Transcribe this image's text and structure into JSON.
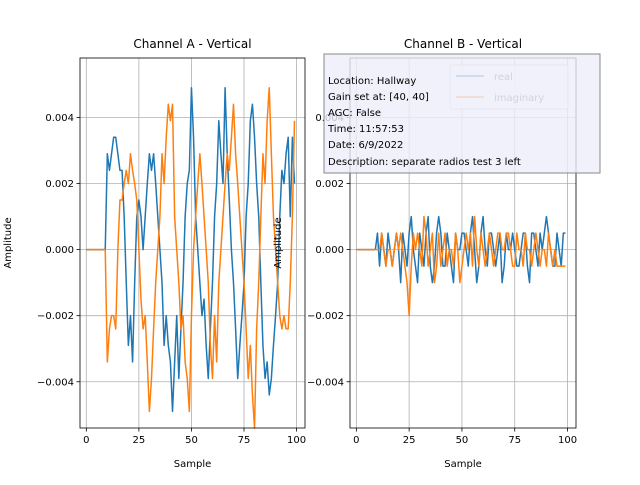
{
  "colors": {
    "real": "#1f77b4",
    "imaginary": "#ff7f0e",
    "grid": "#b0b0b0",
    "info_box_fill": "#eeeefa",
    "info_box_edge": "#888888"
  },
  "info_box": {
    "lines": [
      "Location: Hallway",
      "Gain set at: [40, 40]",
      "AGC: False",
      "Time: 11:57:53",
      "Date: 6/9/2022",
      "Description: separate radios test 3 left"
    ]
  },
  "chart_data": [
    {
      "type": "line",
      "title": "Channel A - Vertical",
      "xlabel": "Sample",
      "ylabel": "Amplitude",
      "xlim": [
        -3,
        104
      ],
      "ylim": [
        -0.0054,
        0.0058
      ],
      "xticks": [
        0,
        25,
        50,
        75,
        100
      ],
      "xtick_labels": [
        "0",
        "25",
        "50",
        "75",
        "100"
      ],
      "yticks": [
        -0.004,
        -0.002,
        0.0,
        0.002,
        0.004
      ],
      "ytick_labels": [
        "−0.004",
        "−0.002",
        "0.000",
        "0.002",
        "0.004"
      ],
      "grid": true,
      "legend": "none",
      "series": [
        {
          "name": "real",
          "x": [
            0,
            1,
            2,
            3,
            4,
            5,
            6,
            7,
            8,
            9,
            10,
            11,
            12,
            13,
            14,
            15,
            16,
            17,
            18,
            19,
            20,
            21,
            22,
            23,
            24,
            25,
            26,
            27,
            28,
            29,
            30,
            31,
            32,
            33,
            34,
            35,
            36,
            37,
            38,
            39,
            40,
            41,
            42,
            43,
            44,
            45,
            46,
            47,
            48,
            49,
            50,
            51,
            52,
            53,
            54,
            55,
            56,
            57,
            58,
            59,
            60,
            61,
            62,
            63,
            64,
            65,
            66,
            67,
            68,
            69,
            70,
            71,
            72,
            73,
            74,
            75,
            76,
            77,
            78,
            79,
            80,
            81,
            82,
            83,
            84,
            85,
            86,
            87,
            88,
            89,
            90,
            91,
            92,
            93,
            94,
            95,
            96,
            97,
            98,
            99
          ],
          "values": [
            0,
            0,
            0,
            0,
            0,
            0,
            0,
            0,
            0,
            0,
            0.0029,
            0.0024,
            0.0029,
            0.0034,
            0.0034,
            0.0029,
            0.0024,
            0.0024,
            0.001,
            -0.001,
            -0.0029,
            -0.002,
            -0.0034,
            -0.001,
            0.001,
            0.0015,
            0.001,
            0.0,
            0.001,
            0.002,
            0.0029,
            0.0024,
            0.0029,
            0.002,
            0.001,
            0.0,
            -0.001,
            -0.0029,
            -0.002,
            -0.0029,
            -0.0034,
            -0.0049,
            -0.0034,
            -0.002,
            -0.0039,
            -0.0024,
            -0.001,
            0.001,
            0.002,
            0.0024,
            0.0049,
            0.0034,
            0.001,
            0.0,
            -0.001,
            -0.002,
            -0.0015,
            -0.0029,
            -0.0039,
            -0.0024,
            -0.001,
            0.001,
            0.002,
            0.0039,
            0.0029,
            0.002,
            0.0049,
            0.0029,
            0.0015,
            0.0,
            -0.001,
            -0.0024,
            -0.0039,
            -0.0029,
            -0.002,
            -0.001,
            0.001,
            0.002,
            0.0039,
            0.0044,
            0.0034,
            0.002,
            0.001,
            -0.001,
            -0.0029,
            -0.0039,
            -0.0034,
            -0.0044,
            -0.0039,
            -0.0029,
            -0.002,
            -0.001,
            0.001,
            0.0024,
            0.002,
            0.0029,
            0.0034,
            0.001,
            0.0034,
            0.002
          ]
        },
        {
          "name": "imaginary",
          "x": [
            0,
            1,
            2,
            3,
            4,
            5,
            6,
            7,
            8,
            9,
            10,
            11,
            12,
            13,
            14,
            15,
            16,
            17,
            18,
            19,
            20,
            21,
            22,
            23,
            24,
            25,
            26,
            27,
            28,
            29,
            30,
            31,
            32,
            33,
            34,
            35,
            36,
            37,
            38,
            39,
            40,
            41,
            42,
            43,
            44,
            45,
            46,
            47,
            48,
            49,
            50,
            51,
            52,
            53,
            54,
            55,
            56,
            57,
            58,
            59,
            60,
            61,
            62,
            63,
            64,
            65,
            66,
            67,
            68,
            69,
            70,
            71,
            72,
            73,
            74,
            75,
            76,
            77,
            78,
            79,
            80,
            81,
            82,
            83,
            84,
            85,
            86,
            87,
            88,
            89,
            90,
            91,
            92,
            93,
            94,
            95,
            96,
            97,
            98,
            99
          ],
          "values": [
            0,
            0,
            0,
            0,
            0,
            0,
            0,
            0,
            0,
            0,
            -0.0034,
            -0.0024,
            -0.002,
            -0.002,
            -0.0024,
            0.0,
            0.0015,
            0.0015,
            0.002,
            0.0024,
            0.002,
            0.0029,
            0.0024,
            0.002,
            0.0015,
            0.0,
            -0.0015,
            -0.0024,
            -0.002,
            -0.0034,
            -0.0049,
            -0.0039,
            -0.0024,
            -0.001,
            0.0,
            0.001,
            0.0029,
            0.002,
            0.0034,
            0.0044,
            0.0039,
            0.0044,
            0.001,
            0.0,
            -0.001,
            -0.0024,
            -0.002,
            -0.0034,
            -0.0039,
            -0.0049,
            -0.002,
            0.0,
            0.001,
            0.002,
            0.0029,
            0.002,
            0.001,
            0.0,
            -0.001,
            -0.0029,
            -0.0039,
            -0.002,
            -0.0034,
            -0.001,
            0.0,
            0.001,
            0.002,
            0.0029,
            0.0024,
            0.0034,
            0.0044,
            0.0029,
            0.002,
            0.001,
            0.0,
            -0.001,
            -0.0024,
            -0.0039,
            -0.0029,
            -0.0044,
            -0.0054,
            -0.0024,
            -0.001,
            0.001,
            0.0029,
            0.002,
            0.0039,
            0.0049,
            0.0029,
            0.001,
            0.0,
            -0.001,
            -0.002,
            -0.0024,
            -0.002,
            -0.0024,
            -0.0024,
            -0.001,
            0.001,
            0.0039
          ]
        }
      ]
    },
    {
      "type": "line",
      "title": "Channel B - Vertical",
      "xlabel": "Sample",
      "ylabel": "Amplitude",
      "xlim": [
        -3,
        104
      ],
      "ylim": [
        -0.0054,
        0.0058
      ],
      "xticks": [
        0,
        25,
        50,
        75,
        100
      ],
      "xtick_labels": [
        "0",
        "25",
        "50",
        "75",
        "100"
      ],
      "yticks": [
        -0.004,
        -0.002,
        0.0,
        0.002,
        0.004
      ],
      "ytick_labels": [
        "−0.004",
        "−0.002",
        "0.000",
        "0.002",
        "0.004"
      ],
      "grid": true,
      "legend": "top-right",
      "series": [
        {
          "name": "real",
          "x": [
            0,
            1,
            2,
            3,
            4,
            5,
            6,
            7,
            8,
            9,
            10,
            11,
            12,
            13,
            14,
            15,
            16,
            17,
            18,
            19,
            20,
            21,
            22,
            23,
            24,
            25,
            26,
            27,
            28,
            29,
            30,
            31,
            32,
            33,
            34,
            35,
            36,
            37,
            38,
            39,
            40,
            41,
            42,
            43,
            44,
            45,
            46,
            47,
            48,
            49,
            50,
            51,
            52,
            53,
            54,
            55,
            56,
            57,
            58,
            59,
            60,
            61,
            62,
            63,
            64,
            65,
            66,
            67,
            68,
            69,
            70,
            71,
            72,
            73,
            74,
            75,
            76,
            77,
            78,
            79,
            80,
            81,
            82,
            83,
            84,
            85,
            86,
            87,
            88,
            89,
            90,
            91,
            92,
            93,
            94,
            95,
            96,
            97,
            98,
            99
          ],
          "values": [
            0,
            0,
            0,
            0,
            0,
            0,
            0,
            0,
            0,
            0,
            0.0005,
            -0.0005,
            0.0005,
            0.0,
            -0.0005,
            0.0005,
            0.0,
            -0.0005,
            0.0,
            0.0005,
            0.0,
            -0.001,
            0.0005,
            0.0,
            -0.0005,
            0.0005,
            0.001,
            0.0,
            -0.0005,
            -0.001,
            0.0005,
            0.0,
            -0.0005,
            0.0005,
            0.001,
            -0.0005,
            -0.001,
            -0.0005,
            0.0005,
            0.001,
            0.0005,
            -0.0005,
            -0.0005,
            0.0005,
            0.0,
            -0.0005,
            -0.001,
            0.0005,
            0.0,
            0.0,
            0.0005,
            0.0005,
            0.0,
            -0.0005,
            0.0005,
            0.001,
            0.0,
            -0.001,
            -0.0005,
            0.0005,
            0.001,
            0.0,
            -0.0005,
            0.0005,
            0.0005,
            0.0,
            -0.0005,
            0.0,
            0.0005,
            -0.001,
            -0.0005,
            0.0005,
            0.0,
            0.0,
            0.0005,
            0.0,
            -0.0005,
            -0.0005,
            0.0,
            0.0005,
            0.0005,
            -0.0005,
            -0.001,
            0.0005,
            0.0005,
            0.0,
            -0.0005,
            0.0005,
            0.0,
            0.0005,
            0.001,
            0.0005,
            0.0,
            -0.0005,
            -0.0005,
            0.0005,
            0.0,
            -0.0005,
            0.0005,
            0.0005
          ]
        },
        {
          "name": "imaginary",
          "x": [
            0,
            1,
            2,
            3,
            4,
            5,
            6,
            7,
            8,
            9,
            10,
            11,
            12,
            13,
            14,
            15,
            16,
            17,
            18,
            19,
            20,
            21,
            22,
            23,
            24,
            25,
            26,
            27,
            28,
            29,
            30,
            31,
            32,
            33,
            34,
            35,
            36,
            37,
            38,
            39,
            40,
            41,
            42,
            43,
            44,
            45,
            46,
            47,
            48,
            49,
            50,
            51,
            52,
            53,
            54,
            55,
            56,
            57,
            58,
            59,
            60,
            61,
            62,
            63,
            64,
            65,
            66,
            67,
            68,
            69,
            70,
            71,
            72,
            73,
            74,
            75,
            76,
            77,
            78,
            79,
            80,
            81,
            82,
            83,
            84,
            85,
            86,
            87,
            88,
            89,
            90,
            91,
            92,
            93,
            94,
            95,
            96,
            97,
            98,
            99
          ],
          "values": [
            0,
            0,
            0,
            0,
            0,
            0,
            0,
            0,
            0,
            0,
            0.0,
            0.0,
            0.0005,
            0.0,
            -0.0005,
            0.0,
            0.0,
            -0.0005,
            0.0,
            0.0005,
            0.0,
            0.0005,
            0.0,
            -0.0005,
            -0.001,
            -0.002,
            -0.0005,
            0.0005,
            0.0,
            0.0005,
            0.0,
            -0.0005,
            0.001,
            0.0005,
            -0.0005,
            0.0,
            0.0005,
            -0.001,
            -0.0005,
            0.0005,
            -0.0005,
            0.0,
            0.0005,
            -0.0005,
            0.0,
            0.0,
            -0.0005,
            0.0005,
            0.0,
            -0.001,
            -0.0005,
            0.0,
            0.0005,
            0.0,
            0.0005,
            -0.0005,
            0.001,
            0.0,
            -0.0005,
            0.0005,
            0.0,
            -0.0005,
            0.0,
            0.0005,
            0.0,
            -0.0005,
            0.0,
            0.0005,
            0.0005,
            0.0,
            0.0,
            0.0005,
            0.0005,
            0.0,
            -0.0005,
            -0.0005,
            0.0005,
            0.0,
            0.0,
            -0.0005,
            0.0005,
            0.0,
            0.0,
            -0.0005,
            0.0,
            0.0005,
            0.0,
            -0.0005,
            0.0,
            0.0,
            -0.0005,
            0.0005,
            0.0,
            -0.0005,
            0.0,
            -0.0005,
            -0.0005,
            -0.0005,
            -0.0005,
            -0.0005
          ]
        }
      ]
    }
  ]
}
